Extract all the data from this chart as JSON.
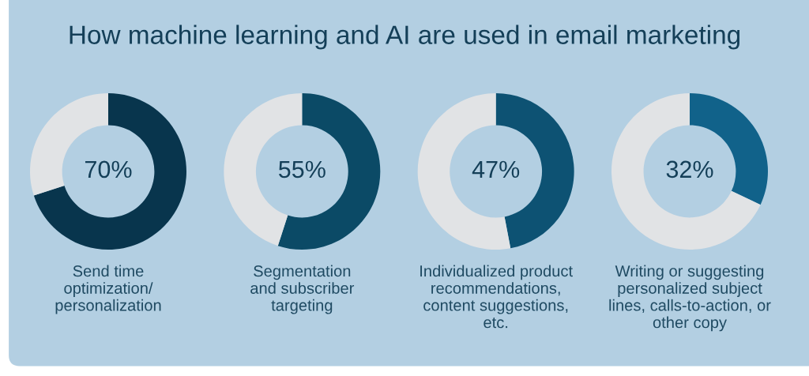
{
  "chart_data": [
    {
      "type": "donut",
      "title": "How machine learning and AI are used in email marketing",
      "categories": [
        null,
        null
      ],
      "values": [
        70,
        30
      ],
      "colors": [
        "#08354d",
        "#e1e3e5"
      ],
      "value_labels": [
        "70%",
        null
      ],
      "xlabel": "Send time\noptimization/\npersonalization"
    },
    {
      "type": "donut",
      "categories": [
        null,
        null
      ],
      "values": [
        55,
        45
      ],
      "colors": [
        "#0b4a66",
        "#e1e3e5"
      ],
      "value_labels": [
        "55%",
        null
      ],
      "xlabel": "Segmentation\nand subscriber\ntargeting"
    },
    {
      "type": "donut",
      "categories": [
        null,
        null
      ],
      "values": [
        47,
        53
      ],
      "colors": [
        "#0d5273",
        "#e1e3e5"
      ],
      "value_labels": [
        "47%",
        null
      ],
      "xlabel": "Individualized product\nrecommendations,\ncontent suggestions,\netc."
    },
    {
      "type": "donut",
      "categories": [
        null,
        null
      ],
      "values": [
        32,
        68
      ],
      "colors": [
        "#11628a",
        "#e1e3e5"
      ],
      "value_labels": [
        "32%",
        null
      ],
      "xlabel": "Writing or suggesting\npersonalized subject\nlines, calls-to-action, or\nother copy"
    }
  ]
}
